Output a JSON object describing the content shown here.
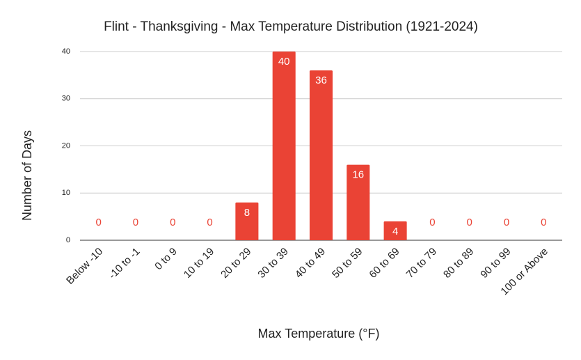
{
  "chart_data": {
    "type": "bar",
    "title": "Flint - Thanksgiving - Max Temperature Distribution (1921-2024)",
    "x_label": "Max Temperature (°F)",
    "y_label": "Number of Days",
    "categories": [
      "Below -10",
      "-10 to -1",
      "0 to 9",
      "10 to 19",
      "20 to 29",
      "30 to 39",
      "40 to 49",
      "50 to 59",
      "60 to 69",
      "70 to 79",
      "80 to 89",
      "90 to 99",
      "100 or Above"
    ],
    "values": [
      0,
      0,
      0,
      0,
      8,
      40,
      36,
      16,
      4,
      0,
      0,
      0,
      0
    ],
    "color": "#ea4335",
    "ylim": [
      0,
      40
    ],
    "yticks": [
      0,
      10,
      20,
      30,
      40
    ],
    "grid": true
  }
}
